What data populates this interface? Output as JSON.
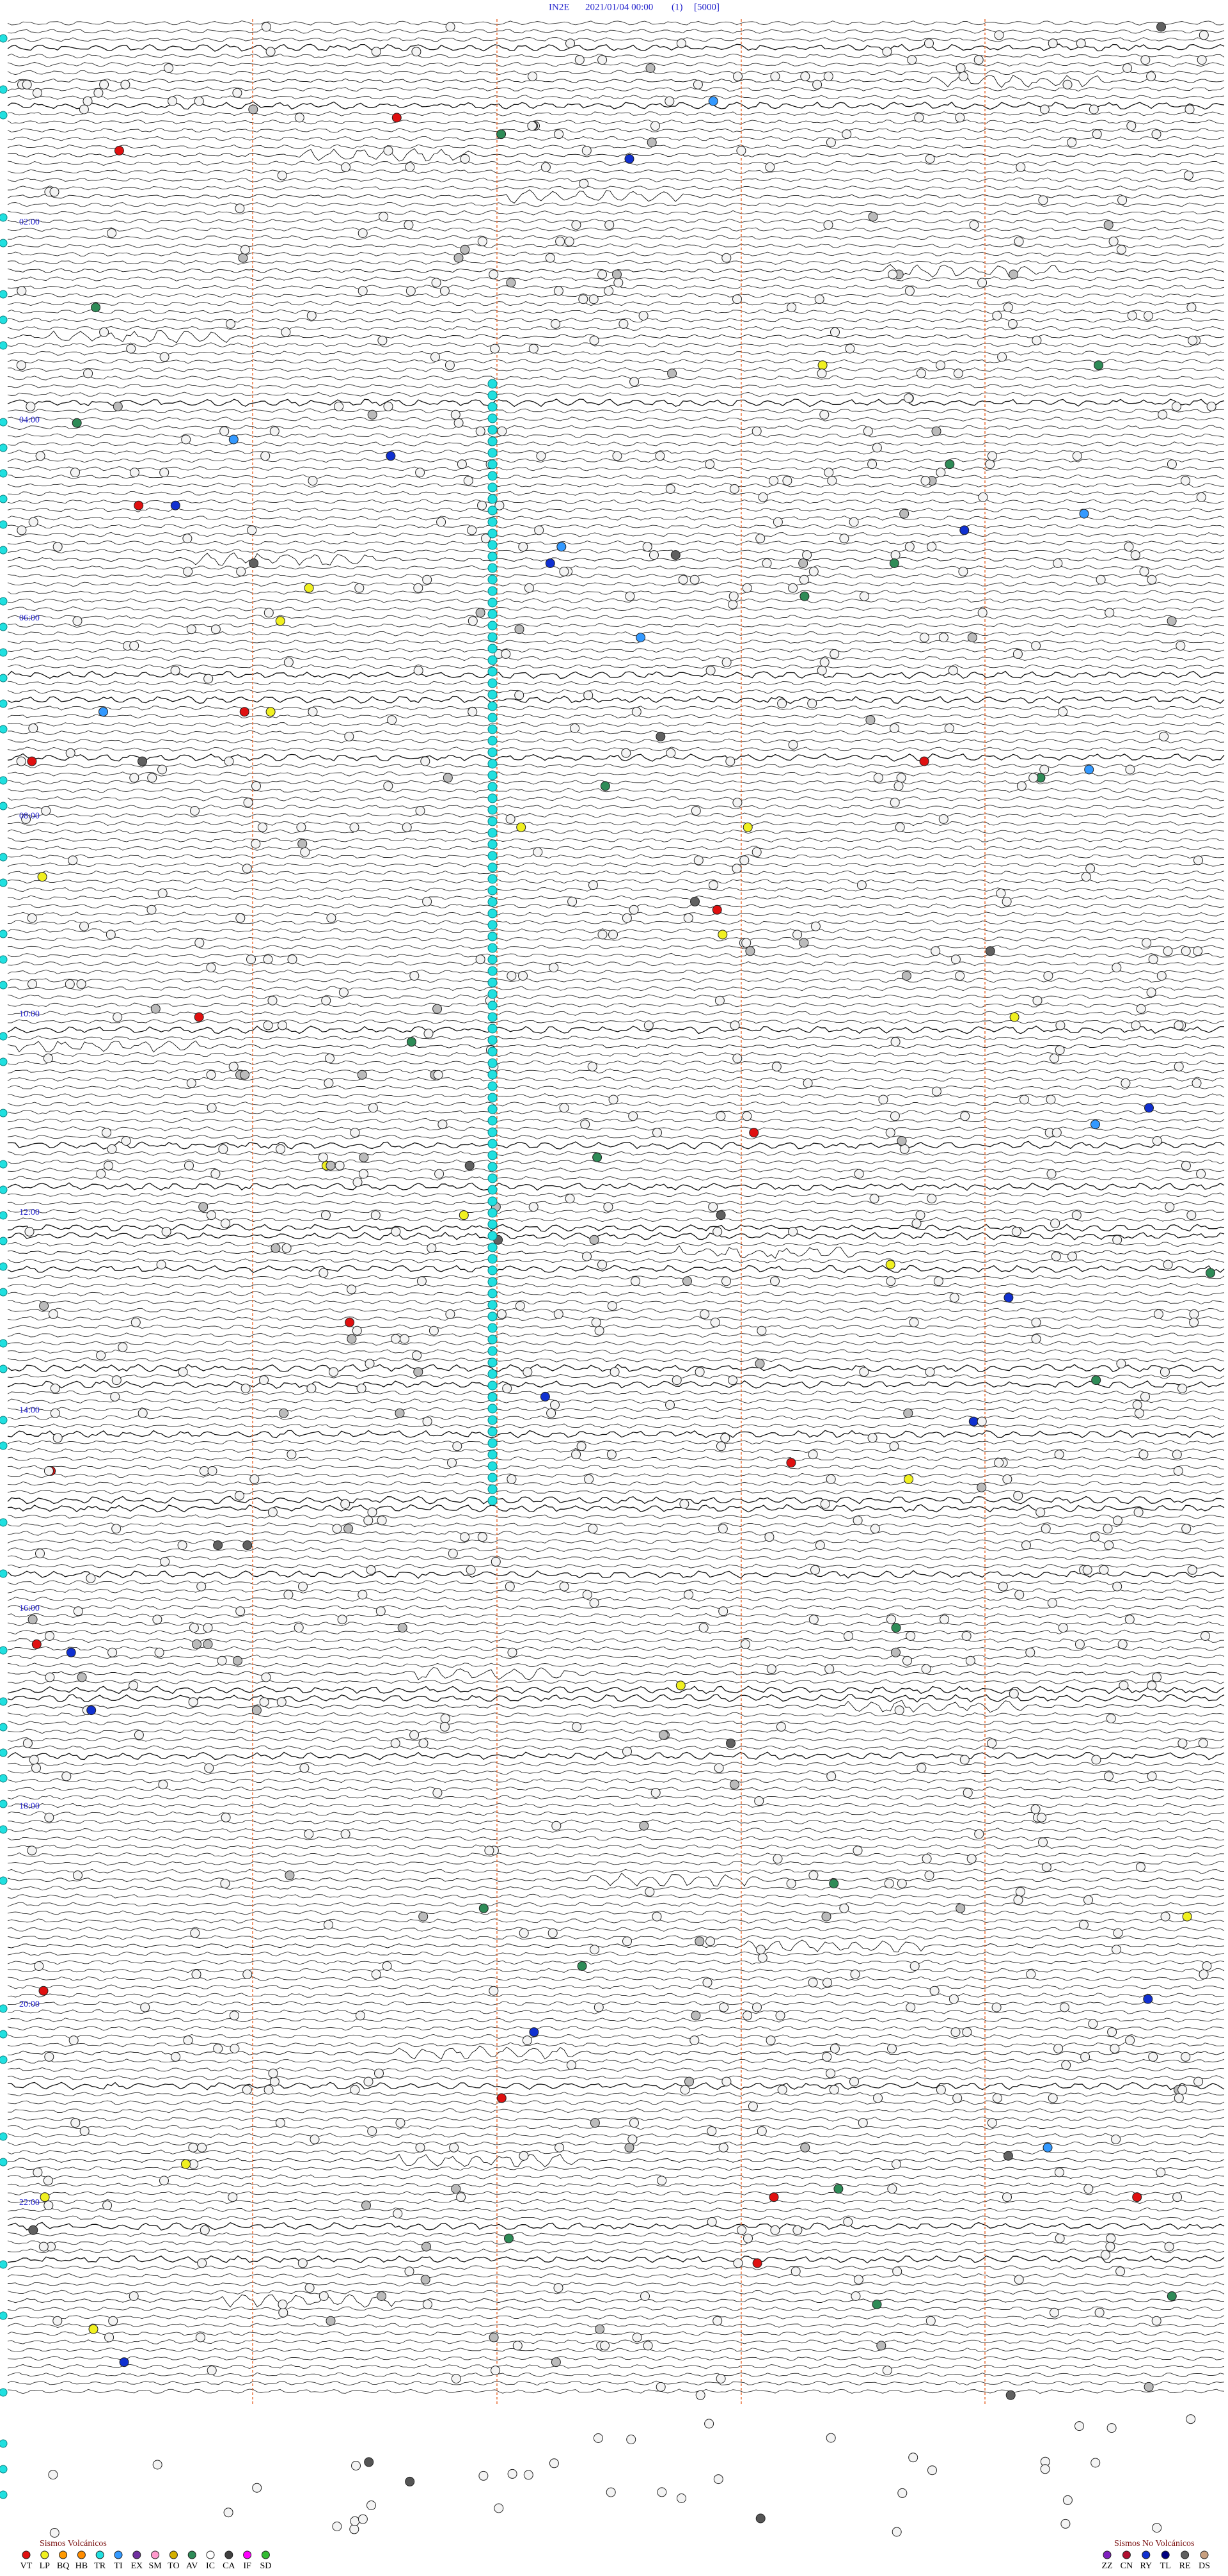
{
  "header": {
    "station": "IN2E",
    "datetime": "2021/01/04 00:00",
    "flag": "(1)",
    "scale": "[5000]"
  },
  "time_labels": [
    "02:00",
    "04:00",
    "06:00",
    "08:00",
    "10:00",
    "12:00",
    "14:00",
    "16:00",
    "18:00",
    "20:00",
    "22:00"
  ],
  "legend_volcanic": {
    "title": "Sismos Volcánicos",
    "items": [
      {
        "code": "VT",
        "color": "#e01010"
      },
      {
        "code": "LP",
        "color": "#f0f020"
      },
      {
        "code": "BQ",
        "color": "#ff9900"
      },
      {
        "code": "HB",
        "color": "#ff8c00"
      },
      {
        "code": "TR",
        "color": "#20e0e0"
      },
      {
        "code": "TI",
        "color": "#3399ff"
      },
      {
        "code": "EX",
        "color": "#7030a0"
      },
      {
        "code": "SM",
        "color": "#ff99cc"
      },
      {
        "code": "TO",
        "color": "#d4b000"
      },
      {
        "code": "AV",
        "color": "#2e8b57"
      },
      {
        "code": "IC",
        "color": "#ffffff"
      },
      {
        "code": "CA",
        "color": "#404040"
      },
      {
        "code": "IF",
        "color": "#ff00ff"
      },
      {
        "code": "SD",
        "color": "#33bb33"
      }
    ]
  },
  "legend_nonvolcanic": {
    "title": "Sismos No Volcánicos",
    "items": [
      {
        "code": "ZZ",
        "color": "#8020c0"
      },
      {
        "code": "CN",
        "color": "#b01030"
      },
      {
        "code": "RY",
        "color": "#1030d0"
      },
      {
        "code": "TL",
        "color": "#000080"
      },
      {
        "code": "RE",
        "color": "#606060"
      },
      {
        "code": "DS",
        "color": "#c8a080"
      }
    ]
  }
}
